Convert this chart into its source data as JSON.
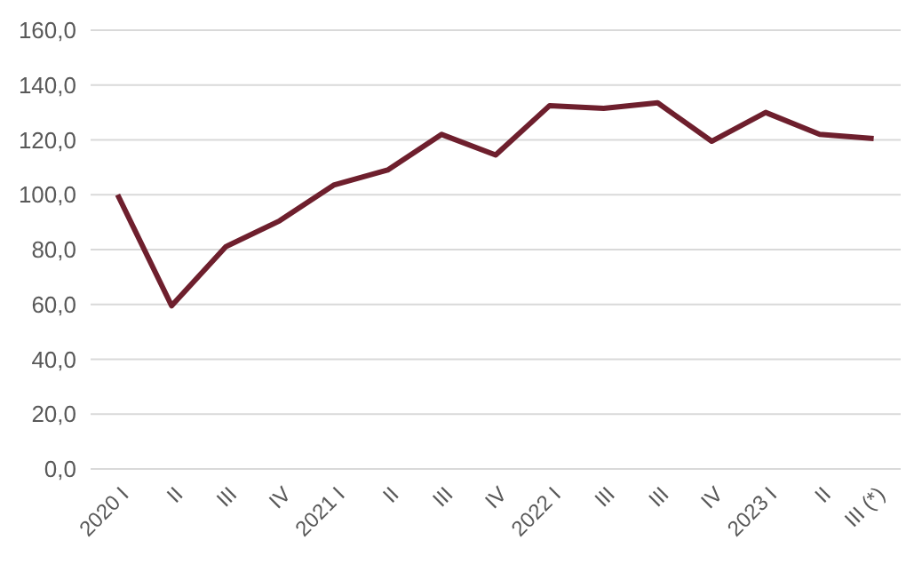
{
  "chart_data": {
    "type": "line",
    "categories": [
      "2020 I",
      "II",
      "III",
      "IV",
      "2021 I",
      "II",
      "III",
      "IV",
      "2022 I",
      "III",
      "III",
      "IV",
      "2023 I",
      "II",
      "III (*)"
    ],
    "series": [
      {
        "color": "#6e1f2d",
        "values": [
          100,
          59.5,
          81,
          90.5,
          103.5,
          109,
          122,
          114.5,
          132.5,
          131.5,
          133.5,
          119.5,
          130,
          122,
          120.5
        ]
      }
    ],
    "ylim": [
      0,
      160
    ],
    "yticks": [
      {
        "value": 0,
        "label": "0,0"
      },
      {
        "value": 20,
        "label": "20,0"
      },
      {
        "value": 40,
        "label": "40,0"
      },
      {
        "value": 60,
        "label": "60,0"
      },
      {
        "value": 80,
        "label": "80,0"
      },
      {
        "value": 100,
        "label": "100,0"
      },
      {
        "value": 120,
        "label": "120,0"
      },
      {
        "value": 140,
        "label": "140,0"
      },
      {
        "value": 160,
        "label": "160,0"
      }
    ],
    "grid": "y",
    "marker": "none",
    "line_style": "solid"
  }
}
